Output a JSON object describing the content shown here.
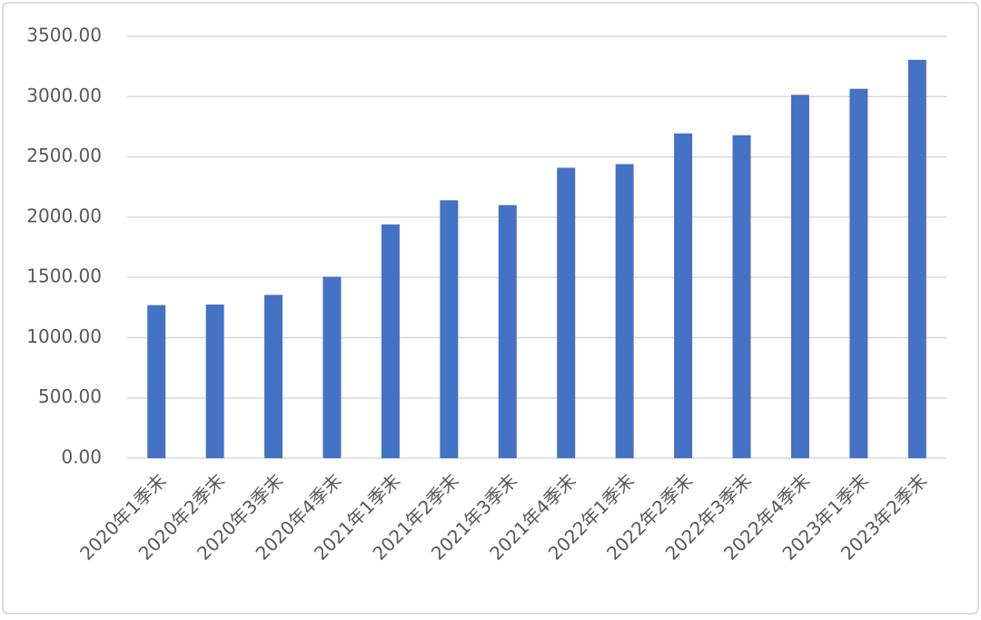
{
  "chart_data": {
    "type": "bar",
    "categories": [
      "2020年1季末",
      "2020年2季末",
      "2020年3季末",
      "2020年4季末",
      "2021年1季末",
      "2021年2季末",
      "2021年3季末",
      "2021年4季末",
      "2022年1季末",
      "2022年2季末",
      "2022年3季末",
      "2022年4季末",
      "2023年1季末",
      "2023年2季末"
    ],
    "values": [
      1270,
      1275,
      1355,
      1505,
      1940,
      2140,
      2100,
      2410,
      2440,
      2695,
      2680,
      3015,
      3065,
      3305
    ],
    "color": "#4472c4",
    "ylim": [
      0,
      3500
    ],
    "yticks": [
      {
        "value": 0,
        "label": "0.00"
      },
      {
        "value": 500,
        "label": "500.00"
      },
      {
        "value": 1000,
        "label": "1000.00"
      },
      {
        "value": 1500,
        "label": "1500.00"
      },
      {
        "value": 2000,
        "label": "2000.00"
      },
      {
        "value": 2500,
        "label": "2500.00"
      },
      {
        "value": 3000,
        "label": "3000.00"
      },
      {
        "value": 3500,
        "label": "3500.00"
      }
    ],
    "grid": true
  }
}
